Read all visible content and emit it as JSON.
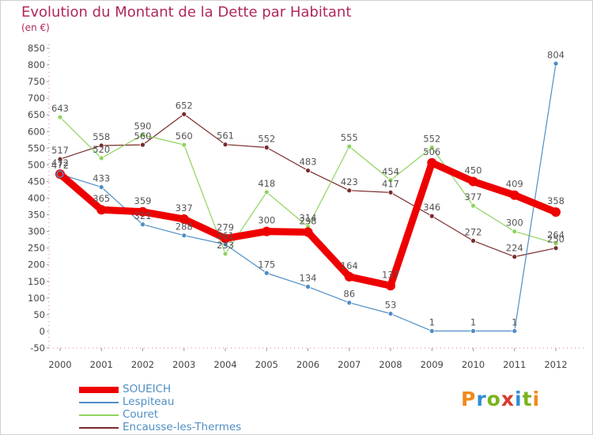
{
  "title": "Evolution du Montant de la Dette par Habitant",
  "subtitle": "(en €)",
  "logo": {
    "text": "Proxiti",
    "letters": [
      {
        "ch": "P",
        "color": "#f08a1c"
      },
      {
        "ch": "r",
        "color": "#2f8fd6"
      },
      {
        "ch": "o",
        "color": "#7ab41d"
      },
      {
        "ch": "x",
        "color": "#d83a2a"
      },
      {
        "ch": "i",
        "color": "#2f8fd6"
      },
      {
        "ch": "t",
        "color": "#7ab41d"
      },
      {
        "ch": "i",
        "color": "#f08a1c"
      }
    ]
  },
  "chart_data": {
    "type": "line",
    "title": "Evolution du Montant de la Dette par Habitant",
    "ylabel": "(en €)",
    "xlabel": "",
    "x": [
      "2000",
      "2001",
      "2002",
      "2003",
      "2004",
      "2005",
      "2006",
      "2007",
      "2008",
      "2009",
      "2010",
      "2011",
      "2012"
    ],
    "ylim": [
      -50,
      850
    ],
    "yticks": [
      -50,
      0,
      50,
      100,
      150,
      200,
      250,
      300,
      350,
      400,
      450,
      500,
      550,
      600,
      650,
      700,
      750,
      800,
      850
    ],
    "grid": false,
    "legend_position": "bottom-left",
    "series": [
      {
        "name": "SOUEICH",
        "color": "#ee0000",
        "values": [
          472,
          365,
          359,
          337,
          279,
          300,
          298,
          164,
          137,
          506,
          450,
          409,
          358
        ],
        "labels": [
          "472",
          "365",
          "359",
          "337",
          "279",
          "300",
          "298",
          "164",
          "137",
          "506",
          "450",
          "409",
          "358"
        ]
      },
      {
        "name": "Lespiteau",
        "color": "#4f8ec4",
        "values": [
          472,
          433,
          321,
          288,
          261,
          175,
          134,
          86,
          53,
          1,
          1,
          1,
          804
        ],
        "labels": [
          "472",
          "433",
          "321",
          "288",
          "261",
          "175",
          "134",
          "86",
          "53",
          "1",
          "1",
          "1",
          "804"
        ]
      },
      {
        "name": "Couret",
        "color": "#8fd35e",
        "values": [
          643,
          520,
          590,
          560,
          233,
          418,
          314,
          555,
          454,
          552,
          377,
          300,
          264
        ],
        "labels": [
          "643",
          "520",
          "590",
          "560",
          "233",
          "418",
          "314",
          "555",
          "454",
          "552",
          "377",
          "300",
          "264"
        ]
      },
      {
        "name": "Encausse-les-Thermes",
        "color": "#7a2b2b",
        "values": [
          517,
          558,
          560,
          652,
          561,
          552,
          483,
          423,
          417,
          346,
          272,
          224,
          250
        ],
        "labels": [
          "517",
          "558",
          "560",
          "652",
          "561",
          "552",
          "483",
          "423",
          "417",
          "346",
          "272",
          "224",
          "250"
        ]
      }
    ]
  }
}
